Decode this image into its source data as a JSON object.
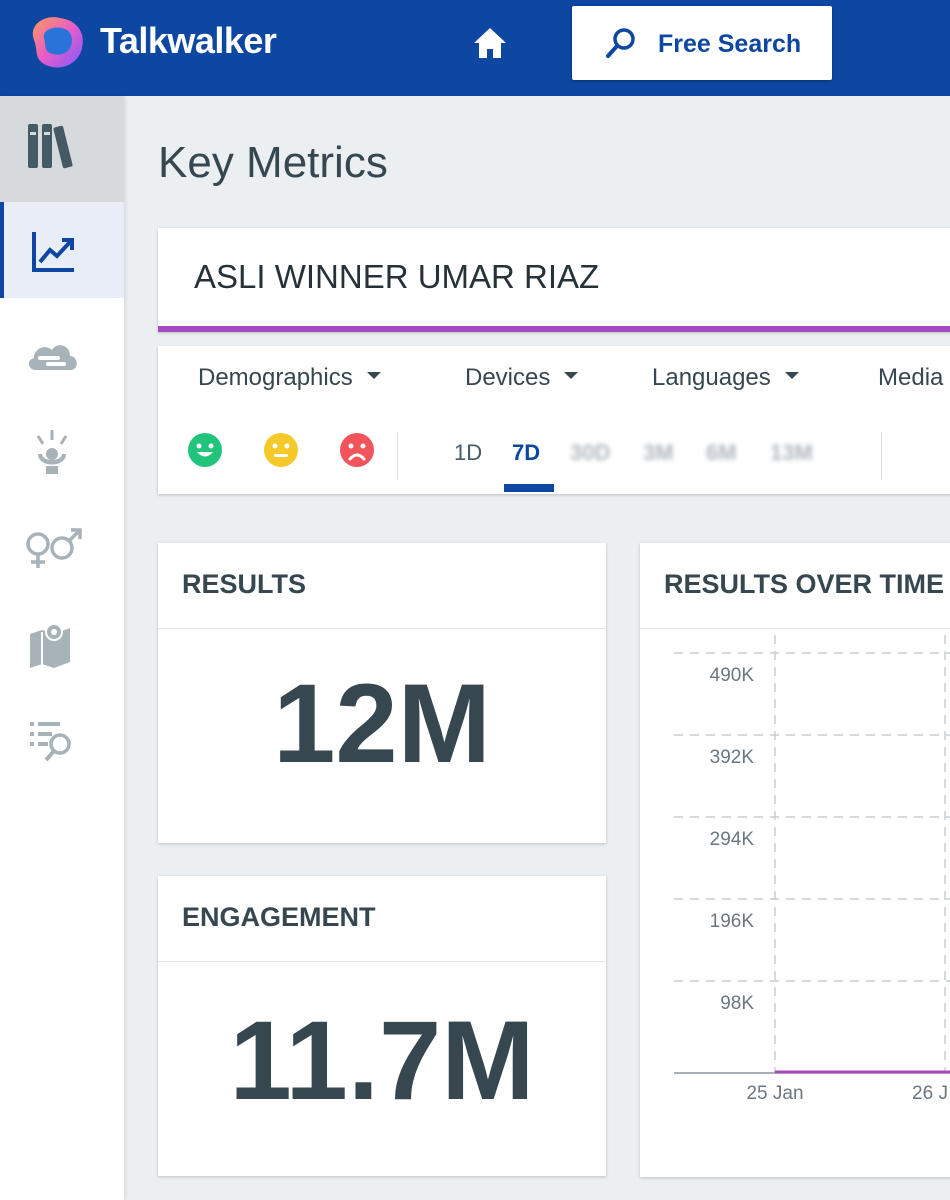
{
  "header": {
    "brand": "Talkwalker",
    "search_label": "Free Search",
    "colors": {
      "bar": "#0d47a1",
      "accent": "#a64bbf"
    }
  },
  "sidebar": {
    "items": [
      {
        "icon": "library-icon",
        "active": false
      },
      {
        "icon": "trend-chart-icon",
        "active": true
      },
      {
        "icon": "cloud-icon",
        "active": false
      },
      {
        "icon": "influencer-icon",
        "active": false
      },
      {
        "icon": "gender-icon",
        "active": false
      },
      {
        "icon": "map-icon",
        "active": false
      },
      {
        "icon": "list-search-icon",
        "active": false
      }
    ]
  },
  "page": {
    "title": "Key Metrics"
  },
  "query": {
    "text": "ASLI WINNER UMAR RIAZ"
  },
  "filters": {
    "dropdowns": [
      "Demographics",
      "Devices",
      "Languages",
      "Media"
    ],
    "sentiments": [
      {
        "name": "positive",
        "color": "#21c47a"
      },
      {
        "name": "neutral",
        "color": "#f5c929"
      },
      {
        "name": "negative",
        "color": "#f2545b"
      }
    ],
    "periods": [
      "1D",
      "7D",
      "30D",
      "3M",
      "6M",
      "13M"
    ],
    "active_period": "7D"
  },
  "metrics": {
    "results": {
      "label": "RESULTS",
      "value": "12M"
    },
    "engagement": {
      "label": "ENGAGEMENT",
      "value": "11.7M"
    }
  },
  "chart_data": {
    "type": "line",
    "title": "RESULTS OVER TIME",
    "y_ticks": [
      "490K",
      "392K",
      "294K",
      "196K",
      "98K"
    ],
    "x_ticks": [
      "25 Jan",
      "26 J"
    ],
    "series": [
      {
        "color": "#a64bbf",
        "values": [
          0,
          0
        ]
      }
    ],
    "grid": true
  }
}
